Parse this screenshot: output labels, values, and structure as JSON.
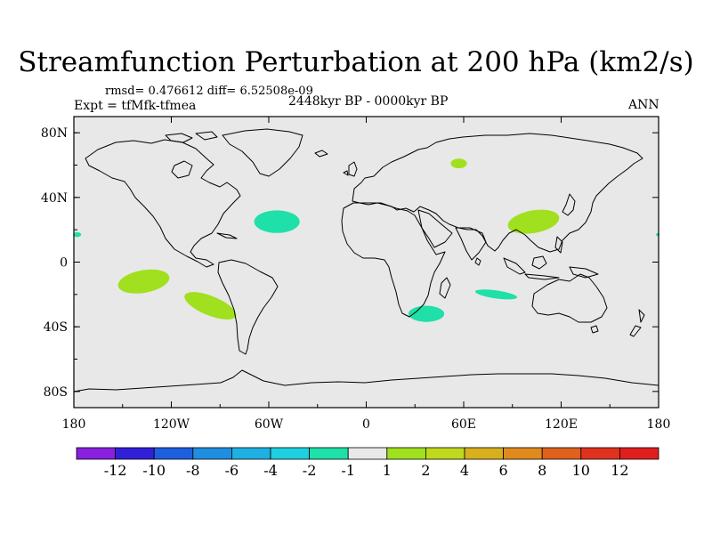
{
  "title": "Streamfunction Perturbation at 200 hPa (km2/s)",
  "stats_line": "rmsd= 0.476612 diff= 6.52508e-09",
  "experiment_line": "Expt = tfMfk-tfmea",
  "period_line": "2448kyr BP - 0000kyr BP",
  "season": "ANN",
  "colors": {
    "background": "#e8e8e8",
    "coast": "#000000"
  },
  "chart_data": {
    "type": "heatmap",
    "title": "Streamfunction Perturbation at 200 hPa (km2/s)",
    "variable": "Streamfunction Perturbation",
    "level": "200 hPa",
    "units": "km2/s",
    "xlim": [
      -180,
      180
    ],
    "ylim": [
      -90,
      90
    ],
    "x_ticks": [
      {
        "value": -180,
        "label": "180"
      },
      {
        "value": -120,
        "label": "120W"
      },
      {
        "value": -60,
        "label": "60W"
      },
      {
        "value": 0,
        "label": "0"
      },
      {
        "value": 60,
        "label": "60E"
      },
      {
        "value": 120,
        "label": "120E"
      },
      {
        "value": 180,
        "label": "180"
      }
    ],
    "y_ticks": [
      {
        "value": 80,
        "label": "80N"
      },
      {
        "value": 40,
        "label": "40N"
      },
      {
        "value": 0,
        "label": "0"
      },
      {
        "value": -40,
        "label": "40S"
      },
      {
        "value": -80,
        "label": "80S"
      }
    ],
    "colorbar": {
      "colors": [
        "#8a1fe0",
        "#3220d8",
        "#1e5fe0",
        "#1e8ee0",
        "#1eb0e0",
        "#1ecfe0",
        "#1ee0a8",
        "#e8e8e8",
        "#a0e01e",
        "#c0d81e",
        "#d8b01e",
        "#e08a1e",
        "#e0601e",
        "#e0321e",
        "#e01e1e"
      ],
      "labels": [
        "-12",
        "-10",
        "-8",
        "-6",
        "-4",
        "-2",
        "-1",
        "1",
        "2",
        "4",
        "6",
        "8",
        "10",
        "12"
      ]
    },
    "anomalies": [
      {
        "name": "central-atlantic-negative",
        "lon": -55,
        "lat": 25,
        "rx": 14,
        "ry": 7,
        "rotate": 0,
        "value_class": "-2 to -1",
        "color": "#1ee0a8"
      },
      {
        "name": "south-africa-negative",
        "lon": 37,
        "lat": -32,
        "rx": 11,
        "ry": 5,
        "rotate": 0,
        "value_class": "-2 to -1",
        "color": "#1ee0a8"
      },
      {
        "name": "indian-ocean-negative",
        "lon": 80,
        "lat": -20,
        "rx": 13,
        "ry": 2.5,
        "rotate": 8,
        "value_class": "-2 to -1",
        "color": "#1ee0a8"
      },
      {
        "name": "pacific-edge-negative",
        "lon": -178,
        "lat": 17,
        "rx": 2.5,
        "ry": 1.5,
        "rotate": 0,
        "value_class": "-2 to -1",
        "color": "#1ee0a8"
      },
      {
        "name": "pacific-edge-negative-east",
        "lon": 179.5,
        "lat": 17,
        "rx": 1,
        "ry": 1,
        "rotate": 0,
        "value_class": "-2 to -1",
        "color": "#1ee0a8"
      },
      {
        "name": "siberia-positive",
        "lon": 57,
        "lat": 61,
        "rx": 5,
        "ry": 3,
        "rotate": 0,
        "value_class": "1 to 2",
        "color": "#a0e01e"
      },
      {
        "name": "south-asia-positive",
        "lon": 103,
        "lat": 25,
        "rx": 16,
        "ry": 7,
        "rotate": -10,
        "value_class": "1 to 2",
        "color": "#a0e01e"
      },
      {
        "name": "south-pacific-positive",
        "lon": -137,
        "lat": -12,
        "rx": 16,
        "ry": 7,
        "rotate": -10,
        "value_class": "1 to 2",
        "color": "#a0e01e"
      },
      {
        "name": "south-america-pacific-positive",
        "lon": -96,
        "lat": -27,
        "rx": 17,
        "ry": 6,
        "rotate": 22,
        "value_class": "1 to 2",
        "color": "#a0e01e"
      }
    ]
  }
}
